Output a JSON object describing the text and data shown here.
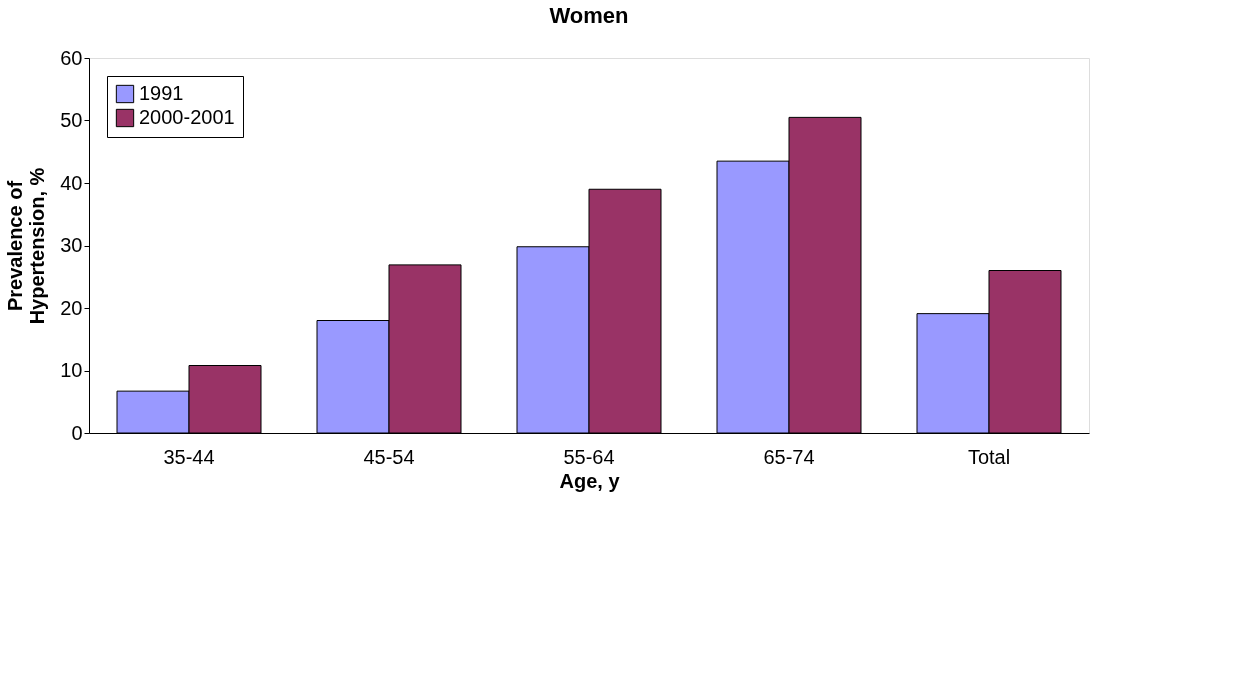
{
  "chart_data": {
    "type": "bar",
    "title": "Women",
    "xlabel": "Age, y",
    "ylabel": "Prevalence of\nHypertension, %",
    "categories": [
      "35-44",
      "45-54",
      "55-64",
      "65-74",
      "Total"
    ],
    "series": [
      {
        "name": "1991",
        "color": "#9999ff",
        "values": [
          6.7,
          18.0,
          29.8,
          43.5,
          19.1
        ]
      },
      {
        "name": "2000-2001",
        "color": "#993366",
        "values": [
          10.8,
          26.9,
          39.0,
          50.5,
          26.0
        ]
      }
    ],
    "ylim": [
      0,
      60
    ],
    "yticks": [
      0,
      10,
      20,
      30,
      40,
      50,
      60
    ],
    "grid": false,
    "legend": "top left"
  }
}
